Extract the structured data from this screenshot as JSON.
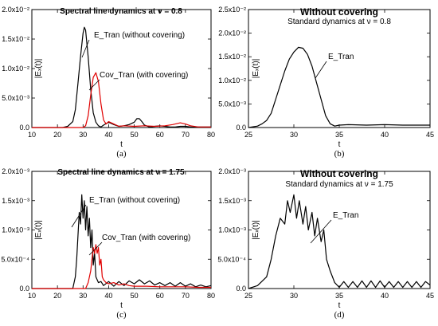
{
  "chart_data": [
    {
      "type": "line",
      "panel_label": "(a)",
      "title": "Spectral line dynamics at ν = 0.8",
      "subtitle": "",
      "xlabel": "t",
      "ylabel": "|Eₓ(t)|",
      "xlim": [
        10,
        80
      ],
      "ylim": [
        0,
        0.02
      ],
      "xticks": [
        "10",
        "20",
        "30",
        "40",
        "50",
        "60",
        "70",
        "80"
      ],
      "yticks": [
        "0.0",
        "5.0x10⁻³",
        "1.0x10⁻²",
        "1.5x10⁻²",
        "2.0x10⁻²"
      ],
      "ytick_values": [
        0,
        0.005,
        0.01,
        0.015,
        0.02
      ],
      "series": [
        {
          "color": "#000000",
          "x": [
            10,
            22,
            24,
            26,
            27,
            28,
            29,
            30,
            30.5,
            31,
            32,
            33,
            34,
            35,
            36,
            37,
            38,
            40,
            42,
            44,
            46,
            48,
            50,
            51,
            52,
            53,
            54,
            56,
            58,
            60,
            62,
            64,
            66,
            68,
            70,
            72,
            74,
            76,
            78,
            80
          ],
          "y": [
            0,
            0,
            0.0002,
            0.001,
            0.003,
            0.0075,
            0.012,
            0.016,
            0.017,
            0.0165,
            0.012,
            0.0065,
            0.0025,
            0.0009,
            0.0003,
            0.0001,
            0.0004,
            0.0009,
            0.0005,
            0.0002,
            0.0003,
            0.0005,
            0.0009,
            0.0015,
            0.0015,
            0.001,
            0.0004,
            0.0001,
            0.0002,
            0.0003,
            0.0002,
            0.0001,
            0.0001,
            0.0002,
            0.0002,
            0.0001,
            0.0001,
            0.0001,
            0.0001,
            0.0001
          ]
        },
        {
          "color": "#e00000",
          "x": [
            10,
            30,
            31,
            32,
            33,
            34,
            35,
            36,
            37,
            38,
            39,
            40,
            42,
            44,
            46,
            50,
            54,
            58,
            62,
            65,
            68,
            70,
            72,
            75,
            78,
            80
          ],
          "y": [
            0,
            0,
            0.0003,
            0.002,
            0.0055,
            0.0085,
            0.0093,
            0.0078,
            0.004,
            0.0013,
            0.0006,
            0.001,
            0.0006,
            0.0002,
            0.0003,
            0.0002,
            0.0003,
            0.0002,
            0.0003,
            0.0005,
            0.0008,
            0.0006,
            0.0003,
            0.0001,
            0.0001,
            0.0001
          ]
        }
      ],
      "annotations": [
        {
          "text": "E_Tran (without covering)"
        },
        {
          "text": "Cov_Tran (with covering)"
        }
      ]
    },
    {
      "type": "line",
      "panel_label": "(b)",
      "title": "Without covering",
      "subtitle": "Standard dynamics at ν = 0.8",
      "xlabel": "t",
      "ylabel": "|Eₓ(t)|",
      "xlim": [
        25,
        45
      ],
      "ylim": [
        0,
        0.025
      ],
      "xticks": [
        "25",
        "30",
        "35",
        "40",
        "45"
      ],
      "yticks": [
        "0.0",
        "5.0x10⁻³",
        "1.0x10⁻²",
        "1.5x10⁻²",
        "2.0x10⁻²",
        "2.5x10⁻²"
      ],
      "ytick_values": [
        0,
        0.005,
        0.01,
        0.015,
        0.02,
        0.025
      ],
      "series": [
        {
          "color": "#000000",
          "x": [
            25,
            26,
            26.5,
            27,
            27.5,
            28,
            28.5,
            29,
            29.5,
            30,
            30.5,
            31,
            31.5,
            32,
            32.5,
            33,
            33.5,
            34,
            34.5,
            35,
            36,
            38,
            40,
            42,
            44,
            45
          ],
          "y": [
            0,
            0.0003,
            0.0008,
            0.0015,
            0.003,
            0.006,
            0.009,
            0.012,
            0.0145,
            0.016,
            0.017,
            0.0168,
            0.0155,
            0.013,
            0.0095,
            0.006,
            0.0025,
            0.0008,
            0.0003,
            0.0005,
            0.0006,
            0.0005,
            0.0006,
            0.0005,
            0.0005,
            0.0005
          ]
        }
      ],
      "annotations": [
        {
          "text": "E_Tran"
        }
      ]
    },
    {
      "type": "line",
      "panel_label": "(c)",
      "title": "Spectral line dynamics at ν = 1.75",
      "subtitle": "",
      "xlabel": "t",
      "ylabel": "|Eₓ(t)|",
      "xlim": [
        10,
        80
      ],
      "ylim": [
        0,
        0.002
      ],
      "xticks": [
        "10",
        "20",
        "30",
        "40",
        "50",
        "60",
        "70",
        "80"
      ],
      "yticks": [
        "0.0",
        "5.0x10⁻⁴",
        "1.0x10⁻³",
        "1.5x10⁻³",
        "2.0x10⁻³"
      ],
      "ytick_values": [
        0,
        0.0005,
        0.001,
        0.0015,
        0.002
      ],
      "series": [
        {
          "color": "#000000",
          "x": [
            10,
            26,
            27,
            27.5,
            28,
            28.5,
            29,
            29.5,
            30,
            30.5,
            31,
            31.5,
            32,
            32.5,
            33,
            33.5,
            34,
            34.5,
            35,
            36,
            37,
            38,
            40,
            42,
            44,
            46,
            48,
            50,
            52,
            54,
            56,
            58,
            60,
            62,
            64,
            66,
            68,
            70,
            72,
            74,
            76,
            78,
            80
          ],
          "y": [
            0,
            0,
            0.0002,
            0.0005,
            0.0009,
            0.0013,
            0.0011,
            0.0016,
            0.0012,
            0.0015,
            0.001,
            0.0014,
            0.0009,
            0.0012,
            0.0007,
            0.001,
            0.0004,
            0.0006,
            0.0002,
            0.0001,
            0.00012,
            5e-05,
            0.00012,
            4e-05,
            0.00012,
            5e-05,
            0.00013,
            8e-05,
            0.00015,
            8e-05,
            0.00013,
            6e-05,
            0.0001,
            5e-05,
            0.0001,
            4e-05,
            0.0001,
            4e-05,
            8e-05,
            3e-05,
            6e-05,
            3e-05,
            5e-05
          ]
        },
        {
          "color": "#e00000",
          "x": [
            10,
            31,
            32,
            33,
            33.5,
            34,
            34.5,
            35,
            35.5,
            36,
            36.5,
            37,
            37.5,
            38,
            39,
            40,
            42,
            44,
            46,
            48,
            50,
            55,
            60,
            65,
            70,
            75,
            80
          ],
          "y": [
            0,
            0,
            0.0001,
            0.0003,
            0.0005,
            0.0007,
            0.0006,
            0.00075,
            0.0006,
            0.0007,
            0.0004,
            0.0005,
            0.0002,
            0.00015,
            0.0001,
            8e-05,
            0.0001,
            6e-05,
            8e-05,
            5e-05,
            4e-05,
            4e-05,
            3e-05,
            3e-05,
            3e-05,
            2e-05,
            2e-05
          ]
        }
      ],
      "annotations": [
        {
          "text": "E_Tran (without covering)"
        },
        {
          "text": "Cov_Tran (with covering)"
        }
      ]
    },
    {
      "type": "line",
      "panel_label": "(d)",
      "title": "Without covering",
      "subtitle": "Standard dynamics at ν = 1.75",
      "xlabel": "t",
      "ylabel": "|Eₓ(t)|",
      "xlim": [
        25,
        45
      ],
      "ylim": [
        0,
        0.002
      ],
      "xticks": [
        "25",
        "30",
        "35",
        "40",
        "45"
      ],
      "yticks": [
        "0.0",
        "5.0x10⁻⁴",
        "1.0x10⁻³",
        "1.5x10⁻³",
        "2.0x10⁻³"
      ],
      "ytick_values": [
        0,
        0.0005,
        0.001,
        0.0015,
        0.002
      ],
      "series": [
        {
          "color": "#000000",
          "x": [
            25,
            26,
            27,
            27.5,
            28,
            28.5,
            29,
            29.3,
            29.6,
            30,
            30.3,
            30.6,
            31,
            31.3,
            31.6,
            32,
            32.3,
            32.6,
            33,
            33.3,
            33.6,
            34,
            34.5,
            35,
            35.5,
            36,
            36.5,
            37,
            37.5,
            38,
            38.5,
            39,
            39.5,
            40,
            40.5,
            41,
            41.5,
            42,
            42.5,
            43,
            43.5,
            44,
            44.5,
            45
          ],
          "y": [
            0,
            5e-05,
            0.0002,
            0.0005,
            0.0009,
            0.0012,
            0.0011,
            0.0015,
            0.0013,
            0.0016,
            0.0012,
            0.0015,
            0.0011,
            0.0014,
            0.001,
            0.0013,
            0.0009,
            0.0012,
            0.0008,
            0.001,
            0.0005,
            0.0003,
            0.0001,
            2e-05,
            0.00012,
            2e-05,
            0.00012,
            2e-05,
            0.00013,
            2e-05,
            0.00013,
            2e-05,
            0.00013,
            2e-05,
            0.00012,
            2e-05,
            0.00012,
            2e-05,
            0.00012,
            2e-05,
            0.00012,
            2e-05,
            0.00012,
            6e-05
          ]
        }
      ],
      "annotations": [
        {
          "text": "E_Tran"
        }
      ]
    }
  ]
}
